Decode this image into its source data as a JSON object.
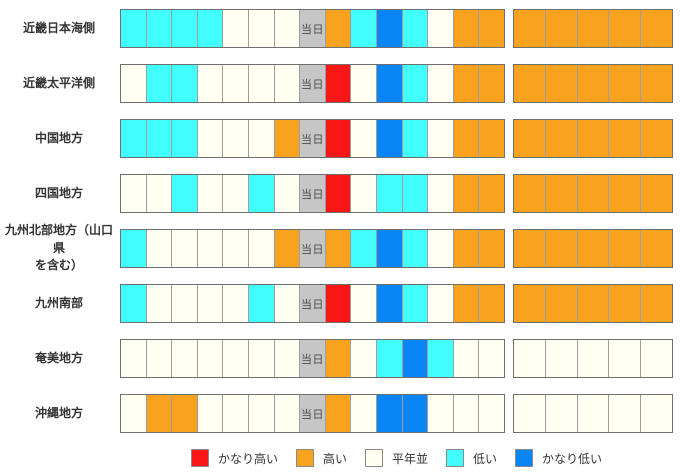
{
  "today_label": "当日",
  "colors": {
    "very_high": "#f81616",
    "high": "#f9a21d",
    "normal": "#fffff2",
    "low": "#41feff",
    "very_low": "#0a85f5",
    "today": "#c6c6c6"
  },
  "chart_data": {
    "type": "heatmap",
    "daily_columns": 15,
    "today_column_index": 7,
    "outlook_columns": 5,
    "legend_position": "bottom",
    "legend": [
      {
        "key": "very_high",
        "label": "かなり高い"
      },
      {
        "key": "high",
        "label": "高い"
      },
      {
        "key": "normal",
        "label": "平年並"
      },
      {
        "key": "low",
        "label": "低い"
      },
      {
        "key": "very_low",
        "label": "かなり低い"
      }
    ],
    "rows": [
      {
        "name_lines": [
          "近畿日本海側"
        ],
        "daily": [
          "low",
          "low",
          "low",
          "low",
          "normal",
          "normal",
          "normal",
          "today",
          "high",
          "low",
          "very_low",
          "low",
          "normal",
          "high",
          "high"
        ],
        "outlook": [
          "high",
          "high",
          "high",
          "high",
          "high"
        ]
      },
      {
        "name_lines": [
          "近畿太平洋側"
        ],
        "daily": [
          "normal",
          "low",
          "low",
          "normal",
          "normal",
          "normal",
          "normal",
          "today",
          "very_high",
          "normal",
          "very_low",
          "low",
          "normal",
          "high",
          "high"
        ],
        "outlook": [
          "high",
          "high",
          "high",
          "high",
          "high"
        ]
      },
      {
        "name_lines": [
          "中国地方"
        ],
        "daily": [
          "low",
          "low",
          "low",
          "normal",
          "normal",
          "normal",
          "high",
          "today",
          "very_high",
          "normal",
          "very_low",
          "low",
          "normal",
          "high",
          "high"
        ],
        "outlook": [
          "high",
          "high",
          "high",
          "high",
          "high"
        ]
      },
      {
        "name_lines": [
          "四国地方"
        ],
        "daily": [
          "normal",
          "normal",
          "low",
          "normal",
          "normal",
          "low",
          "normal",
          "today",
          "very_high",
          "normal",
          "low",
          "low",
          "normal",
          "high",
          "high"
        ],
        "outlook": [
          "high",
          "high",
          "high",
          "high",
          "high"
        ]
      },
      {
        "name_lines": [
          "九州北部地方（山口県",
          "を含む）"
        ],
        "daily": [
          "low",
          "normal",
          "normal",
          "normal",
          "normal",
          "normal",
          "high",
          "today",
          "high",
          "low",
          "very_low",
          "low",
          "normal",
          "high",
          "high"
        ],
        "outlook": [
          "high",
          "high",
          "high",
          "high",
          "high"
        ]
      },
      {
        "name_lines": [
          "九州南部"
        ],
        "daily": [
          "low",
          "normal",
          "normal",
          "normal",
          "normal",
          "low",
          "normal",
          "today",
          "very_high",
          "normal",
          "very_low",
          "low",
          "normal",
          "high",
          "high"
        ],
        "outlook": [
          "high",
          "high",
          "high",
          "high",
          "high"
        ]
      },
      {
        "name_lines": [
          "奄美地方"
        ],
        "daily": [
          "normal",
          "normal",
          "normal",
          "normal",
          "normal",
          "normal",
          "normal",
          "today",
          "high",
          "normal",
          "low",
          "very_low",
          "low",
          "normal",
          "normal"
        ],
        "outlook": [
          "normal",
          "normal",
          "normal",
          "normal",
          "normal"
        ]
      },
      {
        "name_lines": [
          "沖縄地方"
        ],
        "daily": [
          "normal",
          "high",
          "high",
          "normal",
          "normal",
          "normal",
          "normal",
          "today",
          "high",
          "normal",
          "very_low",
          "very_low",
          "normal",
          "normal",
          "normal"
        ],
        "outlook": [
          "normal",
          "normal",
          "normal",
          "normal",
          "normal"
        ]
      }
    ]
  }
}
